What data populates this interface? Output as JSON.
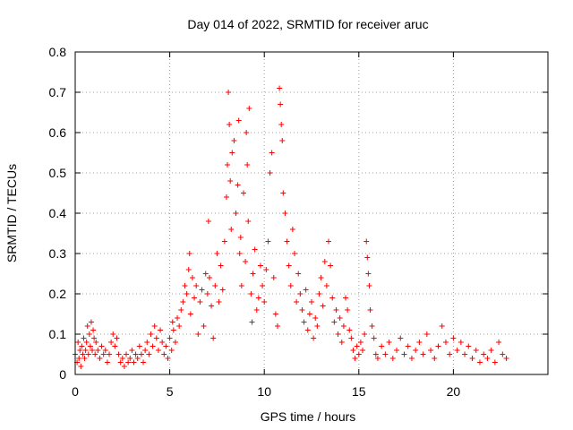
{
  "chart_data": {
    "type": "scatter",
    "title": "Day 014 of 2022, SRMTID for receiver aruc",
    "xlabel": "GPS time / hours",
    "ylabel": "SRMTID / TECUs",
    "xlim": [
      0,
      25
    ],
    "ylim": [
      0,
      0.8
    ],
    "x_ticks": [
      0,
      5,
      10,
      15,
      20
    ],
    "x_tick_labels": [
      "0",
      "5",
      "10",
      "15",
      "20"
    ],
    "y_ticks": [
      0,
      0.1,
      0.2,
      0.3,
      0.4,
      0.5,
      0.6,
      0.7,
      0.8
    ],
    "y_tick_labels": [
      "0",
      "0.1",
      "0.2",
      "0.3",
      "0.4",
      "0.5",
      "0.6",
      "0.7",
      "0.8"
    ],
    "grid": true,
    "marker": "+",
    "color": "#ff0000",
    "series": [
      {
        "name": "aruc",
        "points": [
          [
            0.0,
            0.05
          ],
          [
            0.1,
            0.03
          ],
          [
            0.15,
            0.08
          ],
          [
            0.2,
            0.04
          ],
          [
            0.25,
            0.06
          ],
          [
            0.3,
            0.02
          ],
          [
            0.35,
            0.07
          ],
          [
            0.4,
            0.05
          ],
          [
            0.45,
            0.09
          ],
          [
            0.5,
            0.04
          ],
          [
            0.55,
            0.06
          ],
          [
            0.6,
            0.08
          ],
          [
            0.65,
            0.12
          ],
          [
            0.7,
            0.05
          ],
          [
            0.75,
            0.1
          ],
          [
            0.8,
            0.07
          ],
          [
            0.85,
            0.13
          ],
          [
            0.9,
            0.06
          ],
          [
            0.95,
            0.11
          ],
          [
            1.0,
            0.09
          ],
          [
            1.05,
            0.05
          ],
          [
            1.1,
            0.08
          ],
          [
            1.2,
            0.06
          ],
          [
            1.3,
            0.04
          ],
          [
            1.4,
            0.07
          ],
          [
            1.5,
            0.05
          ],
          [
            1.6,
            0.06
          ],
          [
            1.7,
            0.03
          ],
          [
            1.8,
            0.05
          ],
          [
            1.9,
            0.08
          ],
          [
            2.0,
            0.1
          ],
          [
            2.1,
            0.07
          ],
          [
            2.2,
            0.09
          ],
          [
            2.3,
            0.05
          ],
          [
            2.4,
            0.03
          ],
          [
            2.5,
            0.04
          ],
          [
            2.6,
            0.02
          ],
          [
            2.7,
            0.05
          ],
          [
            2.8,
            0.03
          ],
          [
            2.9,
            0.04
          ],
          [
            3.0,
            0.06
          ],
          [
            3.1,
            0.03
          ],
          [
            3.2,
            0.05
          ],
          [
            3.3,
            0.04
          ],
          [
            3.4,
            0.07
          ],
          [
            3.5,
            0.05
          ],
          [
            3.6,
            0.03
          ],
          [
            3.7,
            0.06
          ],
          [
            3.8,
            0.08
          ],
          [
            3.9,
            0.05
          ],
          [
            4.0,
            0.1
          ],
          [
            4.1,
            0.07
          ],
          [
            4.2,
            0.12
          ],
          [
            4.3,
            0.09
          ],
          [
            4.4,
            0.06
          ],
          [
            4.5,
            0.11
          ],
          [
            4.6,
            0.08
          ],
          [
            4.7,
            0.05
          ],
          [
            4.8,
            0.07
          ],
          [
            4.9,
            0.04
          ],
          [
            5.0,
            0.09
          ],
          [
            5.1,
            0.06
          ],
          [
            5.15,
            0.13
          ],
          [
            5.2,
            0.11
          ],
          [
            5.3,
            0.08
          ],
          [
            5.4,
            0.14
          ],
          [
            5.5,
            0.12
          ],
          [
            5.6,
            0.16
          ],
          [
            5.7,
            0.18
          ],
          [
            5.8,
            0.22
          ],
          [
            5.9,
            0.2
          ],
          [
            6.0,
            0.26
          ],
          [
            6.05,
            0.3
          ],
          [
            6.1,
            0.15
          ],
          [
            6.2,
            0.24
          ],
          [
            6.3,
            0.19
          ],
          [
            6.4,
            0.22
          ],
          [
            6.5,
            0.1
          ],
          [
            6.6,
            0.18
          ],
          [
            6.7,
            0.21
          ],
          [
            6.8,
            0.12
          ],
          [
            6.9,
            0.25
          ],
          [
            7.0,
            0.2
          ],
          [
            7.05,
            0.38
          ],
          [
            7.1,
            0.24
          ],
          [
            7.2,
            0.17
          ],
          [
            7.3,
            0.09
          ],
          [
            7.4,
            0.22
          ],
          [
            7.5,
            0.3
          ],
          [
            7.6,
            0.18
          ],
          [
            7.7,
            0.27
          ],
          [
            7.8,
            0.21
          ],
          [
            7.9,
            0.33
          ],
          [
            8.0,
            0.44
          ],
          [
            8.05,
            0.52
          ],
          [
            8.1,
            0.7
          ],
          [
            8.15,
            0.62
          ],
          [
            8.2,
            0.48
          ],
          [
            8.25,
            0.36
          ],
          [
            8.3,
            0.55
          ],
          [
            8.4,
            0.58
          ],
          [
            8.5,
            0.4
          ],
          [
            8.6,
            0.47
          ],
          [
            8.65,
            0.63
          ],
          [
            8.7,
            0.3
          ],
          [
            8.75,
            0.34
          ],
          [
            8.8,
            0.22
          ],
          [
            8.9,
            0.45
          ],
          [
            9.0,
            0.28
          ],
          [
            9.05,
            0.6
          ],
          [
            9.1,
            0.52
          ],
          [
            9.15,
            0.38
          ],
          [
            9.2,
            0.66
          ],
          [
            9.3,
            0.2
          ],
          [
            9.35,
            0.13
          ],
          [
            9.4,
            0.25
          ],
          [
            9.5,
            0.31
          ],
          [
            9.6,
            0.16
          ],
          [
            9.7,
            0.19
          ],
          [
            9.8,
            0.27
          ],
          [
            9.9,
            0.22
          ],
          [
            10.0,
            0.18
          ],
          [
            10.1,
            0.26
          ],
          [
            10.2,
            0.33
          ],
          [
            10.3,
            0.5
          ],
          [
            10.4,
            0.55
          ],
          [
            10.5,
            0.24
          ],
          [
            10.6,
            0.15
          ],
          [
            10.7,
            0.12
          ],
          [
            10.8,
            0.71
          ],
          [
            10.85,
            0.67
          ],
          [
            10.9,
            0.62
          ],
          [
            10.95,
            0.58
          ],
          [
            11.0,
            0.45
          ],
          [
            11.1,
            0.4
          ],
          [
            11.2,
            0.33
          ],
          [
            11.3,
            0.27
          ],
          [
            11.4,
            0.22
          ],
          [
            11.5,
            0.36
          ],
          [
            11.6,
            0.3
          ],
          [
            11.7,
            0.18
          ],
          [
            11.8,
            0.25
          ],
          [
            11.9,
            0.2
          ],
          [
            12.0,
            0.16
          ],
          [
            12.1,
            0.13
          ],
          [
            12.2,
            0.21
          ],
          [
            12.3,
            0.11
          ],
          [
            12.4,
            0.15
          ],
          [
            12.5,
            0.18
          ],
          [
            12.6,
            0.09
          ],
          [
            12.7,
            0.14
          ],
          [
            12.8,
            0.12
          ],
          [
            12.9,
            0.2
          ],
          [
            13.0,
            0.24
          ],
          [
            13.1,
            0.17
          ],
          [
            13.2,
            0.28
          ],
          [
            13.3,
            0.22
          ],
          [
            13.4,
            0.33
          ],
          [
            13.5,
            0.27
          ],
          [
            13.6,
            0.19
          ],
          [
            13.7,
            0.13
          ],
          [
            13.8,
            0.16
          ],
          [
            13.9,
            0.1
          ],
          [
            14.0,
            0.14
          ],
          [
            14.1,
            0.08
          ],
          [
            14.2,
            0.12
          ],
          [
            14.3,
            0.19
          ],
          [
            14.4,
            0.16
          ],
          [
            14.5,
            0.11
          ],
          [
            14.6,
            0.09
          ],
          [
            14.7,
            0.06
          ],
          [
            14.8,
            0.04
          ],
          [
            14.9,
            0.07
          ],
          [
            15.0,
            0.05
          ],
          [
            15.1,
            0.08
          ],
          [
            15.2,
            0.06
          ],
          [
            15.3,
            0.1
          ],
          [
            15.4,
            0.33
          ],
          [
            15.45,
            0.29
          ],
          [
            15.5,
            0.25
          ],
          [
            15.55,
            0.22
          ],
          [
            15.6,
            0.16
          ],
          [
            15.7,
            0.12
          ],
          [
            15.8,
            0.09
          ],
          [
            15.9,
            0.05
          ],
          [
            16.0,
            0.04
          ],
          [
            16.2,
            0.07
          ],
          [
            16.4,
            0.05
          ],
          [
            16.6,
            0.08
          ],
          [
            16.8,
            0.04
          ],
          [
            17.0,
            0.06
          ],
          [
            17.2,
            0.09
          ],
          [
            17.4,
            0.05
          ],
          [
            17.6,
            0.07
          ],
          [
            17.8,
            0.04
          ],
          [
            18.0,
            0.06
          ],
          [
            18.2,
            0.08
          ],
          [
            18.4,
            0.05
          ],
          [
            18.6,
            0.1
          ],
          [
            18.8,
            0.06
          ],
          [
            19.0,
            0.04
          ],
          [
            19.2,
            0.07
          ],
          [
            19.4,
            0.12
          ],
          [
            19.6,
            0.08
          ],
          [
            19.8,
            0.05
          ],
          [
            20.0,
            0.09
          ],
          [
            20.2,
            0.06
          ],
          [
            20.4,
            0.08
          ],
          [
            20.6,
            0.05
          ],
          [
            20.8,
            0.07
          ],
          [
            21.0,
            0.04
          ],
          [
            21.2,
            0.06
          ],
          [
            21.4,
            0.03
          ],
          [
            21.6,
            0.05
          ],
          [
            21.8,
            0.04
          ],
          [
            22.0,
            0.06
          ],
          [
            22.2,
            0.03
          ],
          [
            22.4,
            0.08
          ],
          [
            22.6,
            0.05
          ],
          [
            22.8,
            0.04
          ]
        ]
      }
    ]
  }
}
